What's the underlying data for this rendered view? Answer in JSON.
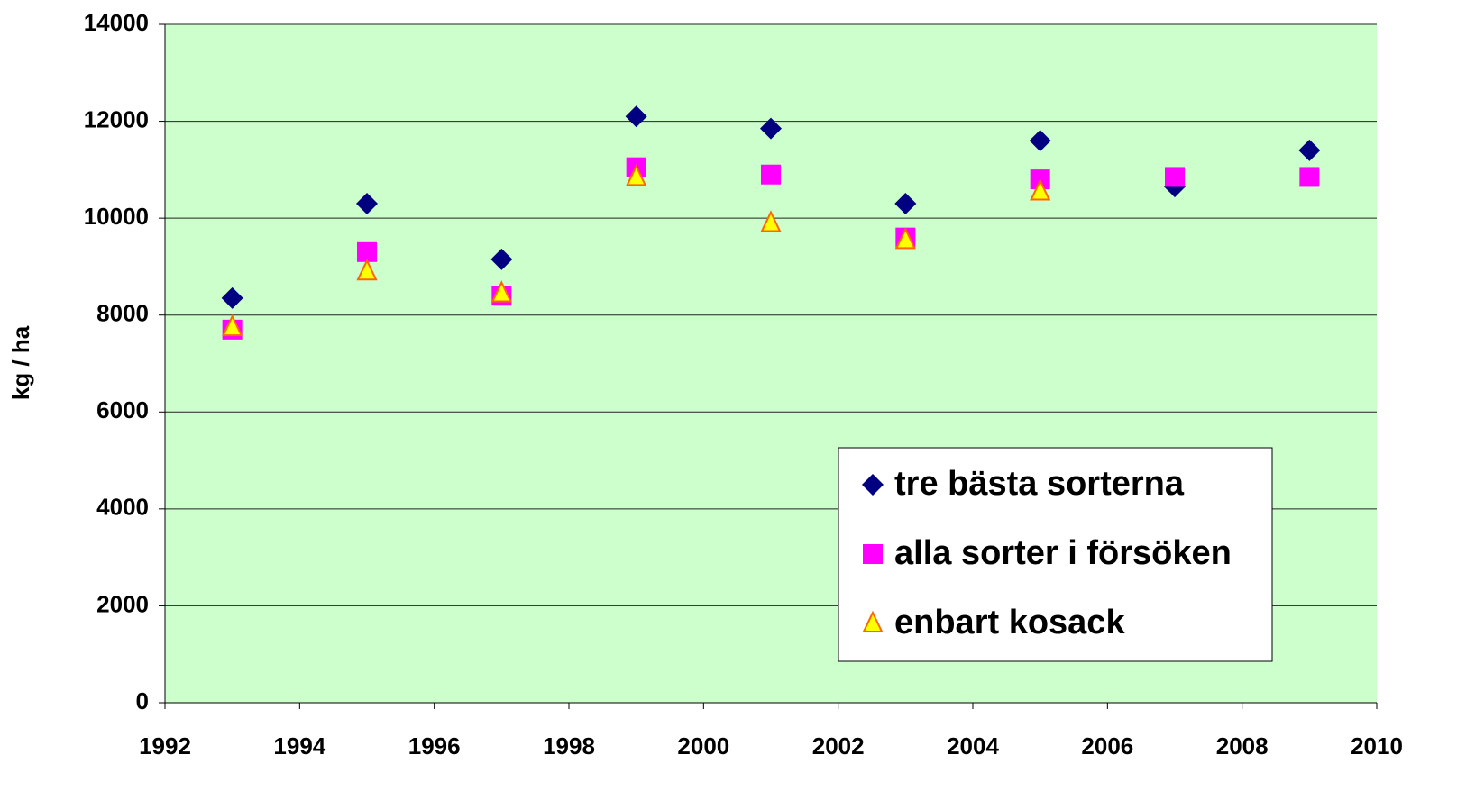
{
  "chart_data": {
    "type": "scatter",
    "y_label": "kg / ha",
    "xlim": [
      1992,
      2010
    ],
    "xticks": [
      1992,
      1994,
      1996,
      1998,
      2000,
      2002,
      2004,
      2006,
      2008,
      2010
    ],
    "ylim": [
      0,
      14000
    ],
    "yticks": [
      0,
      2000,
      4000,
      6000,
      8000,
      10000,
      12000,
      14000
    ],
    "grid": true,
    "legend": "lower right",
    "background": "#ccffcc",
    "series": [
      {
        "name": "tre bästa sorterna",
        "marker": "diamond",
        "color": "#000080",
        "x": [
          1993,
          1995,
          1997,
          1999,
          2001,
          2003,
          2005,
          2007,
          2009
        ],
        "values": [
          8350,
          10300,
          9150,
          12100,
          11850,
          10300,
          11600,
          10650,
          11400
        ]
      },
      {
        "name": "alla sorter i försöken",
        "marker": "square",
        "color": "#ff00ff",
        "x": [
          1993,
          1995,
          1997,
          1999,
          2001,
          2003,
          2005,
          2007,
          2009
        ],
        "values": [
          7700,
          9300,
          8400,
          11050,
          10900,
          9600,
          10800,
          10850,
          10850
        ]
      },
      {
        "name": "enbart kosack",
        "marker": "triangle",
        "color": "#ffff00",
        "edgecolor": "#ff6600",
        "x": [
          1993,
          1995,
          1997,
          1999,
          2001,
          2003,
          2005
        ],
        "values": [
          7750,
          8900,
          8450,
          10850,
          9900,
          9550,
          10550
        ]
      }
    ]
  }
}
